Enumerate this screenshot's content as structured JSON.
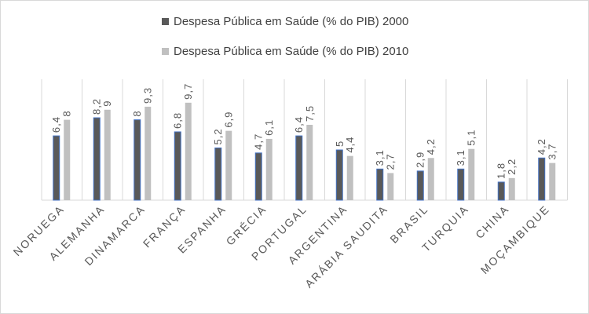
{
  "chart_data": {
    "type": "bar",
    "title": "",
    "xlabel": "",
    "ylabel": "",
    "ylim": [
      0,
      10
    ],
    "grid": "vertical category separators",
    "legend_position": "top",
    "categories": [
      "NORUEGA",
      "ALEMANHA",
      "DINAMARCA",
      "FRANÇA",
      "ESPANHA",
      "GRÉCIA",
      "PORTUGAL",
      "ARGENTINA",
      "ARÁBIA SAUDITA",
      "BRASIL",
      "TURQUIA",
      "CHINA",
      "MOÇAMBIQUE"
    ],
    "series": [
      {
        "name": "Despesa Pública em Saúde (% do PIB) 2000",
        "color": "#595959",
        "values": [
          6.4,
          8.2,
          8,
          6.8,
          5.2,
          4.7,
          6.4,
          5,
          3.1,
          2.9,
          3.1,
          1.8,
          4.2
        ]
      },
      {
        "name": "Despesa Pública em Saúde (% do PIB) 2010",
        "color": "#c0c0c0",
        "values": [
          8,
          9,
          9.3,
          9.7,
          6.9,
          6.1,
          7.5,
          4.4,
          2.7,
          4.2,
          5.1,
          2.2,
          3.7
        ]
      }
    ]
  }
}
